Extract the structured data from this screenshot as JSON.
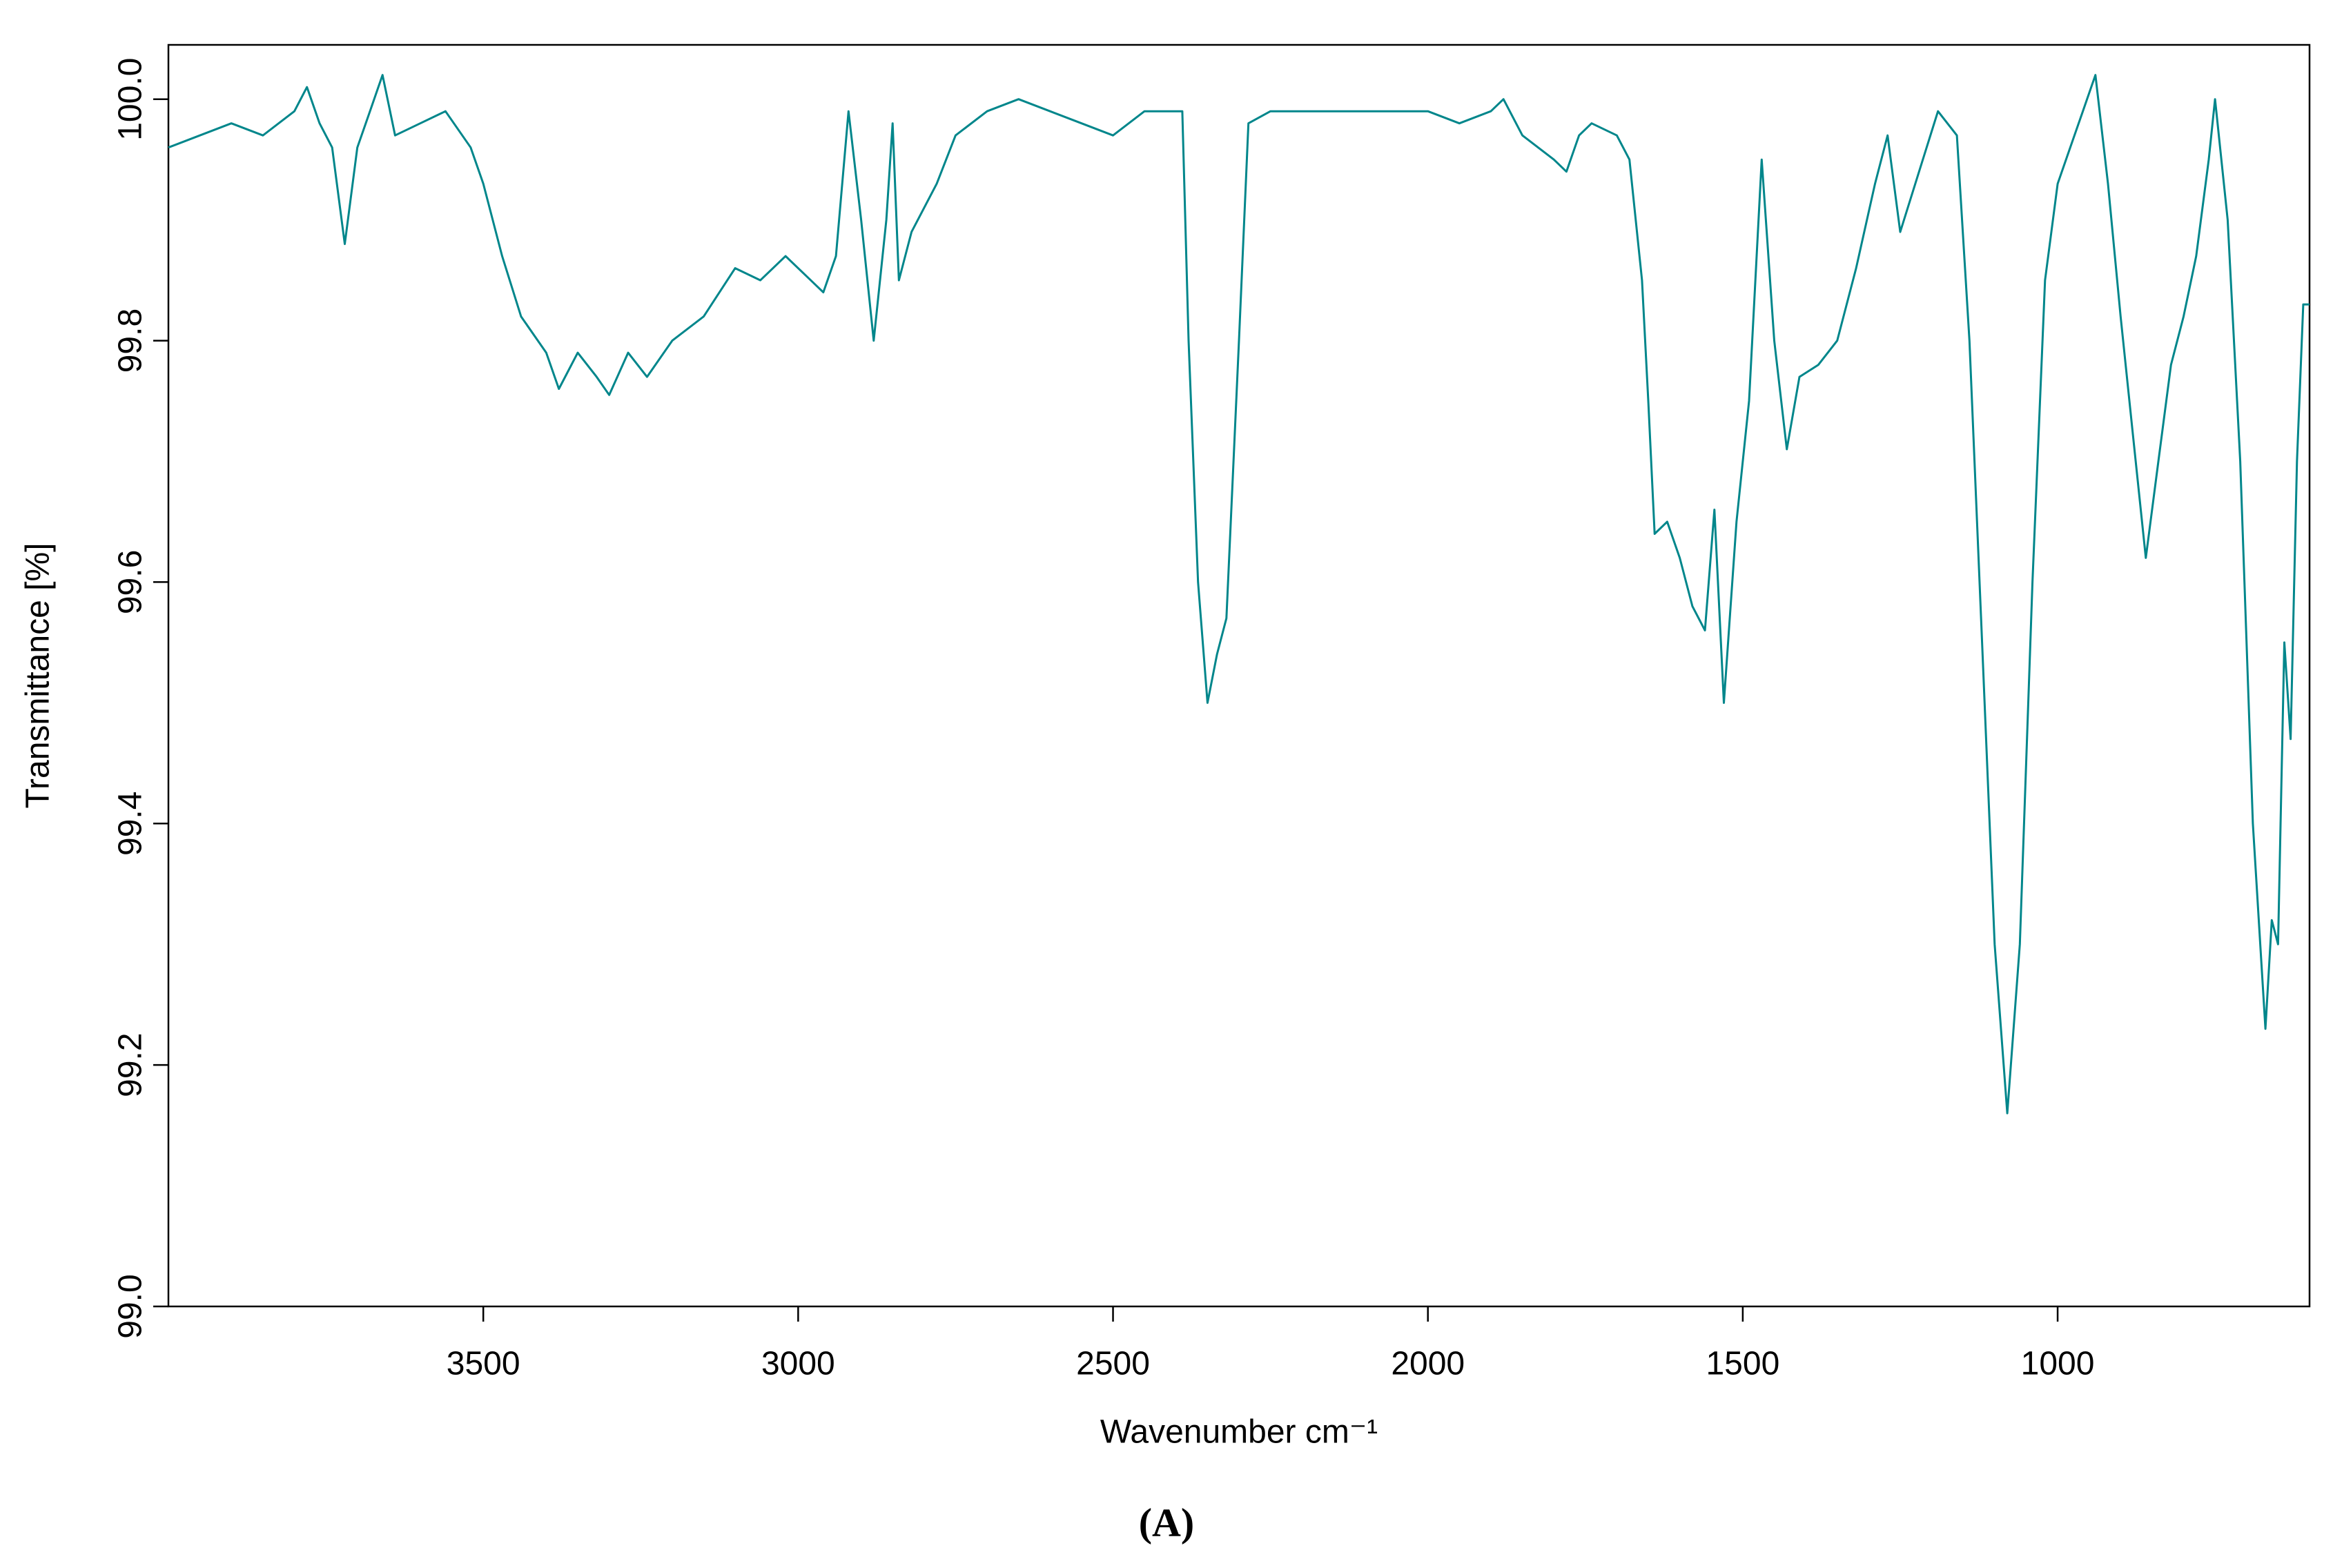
{
  "chart_data": {
    "type": "line",
    "x_label": "Wavenumber cm⁻¹",
    "y_label": "Transmittance [%]",
    "caption": "(A)",
    "color": "#00868b",
    "xlim": [
      4000,
      600
    ],
    "ylim": [
      99.0,
      100.045
    ],
    "xticks": [
      3500,
      3000,
      2500,
      2000,
      1500,
      1000
    ],
    "yticks": [
      {
        "value": 99.0,
        "label": "99.0"
      },
      99.2,
      99.4,
      99.6,
      99.8,
      {
        "value": 100.0,
        "label": "100.0"
      }
    ],
    "x": [
      4000,
      3950,
      3900,
      3850,
      3800,
      3780,
      3760,
      3740,
      3720,
      3700,
      3680,
      3660,
      3640,
      3600,
      3560,
      3520,
      3500,
      3470,
      3440,
      3400,
      3380,
      3350,
      3320,
      3300,
      3270,
      3240,
      3200,
      3150,
      3100,
      3060,
      3020,
      2980,
      2960,
      2940,
      2920,
      2900,
      2880,
      2860,
      2850,
      2840,
      2820,
      2780,
      2750,
      2700,
      2650,
      2600,
      2550,
      2500,
      2450,
      2400,
      2390,
      2380,
      2365,
      2350,
      2335,
      2320,
      2300,
      2285,
      2250,
      2200,
      2100,
      2000,
      1950,
      1900,
      1880,
      1850,
      1800,
      1780,
      1760,
      1740,
      1700,
      1680,
      1660,
      1650,
      1640,
      1620,
      1600,
      1580,
      1560,
      1545,
      1530,
      1510,
      1490,
      1470,
      1450,
      1430,
      1410,
      1380,
      1350,
      1320,
      1290,
      1270,
      1250,
      1220,
      1190,
      1160,
      1140,
      1120,
      1100,
      1080,
      1060,
      1040,
      1020,
      1000,
      980,
      960,
      940,
      920,
      900,
      880,
      860,
      840,
      820,
      800,
      780,
      760,
      750,
      730,
      710,
      690,
      670,
      660,
      650,
      640,
      630,
      620,
      610,
      600
    ],
    "values": [
      99.96,
      99.97,
      99.98,
      99.97,
      99.99,
      100.01,
      99.98,
      99.96,
      99.88,
      99.96,
      99.99,
      100.02,
      99.97,
      99.98,
      99.99,
      99.96,
      99.93,
      99.87,
      99.82,
      99.79,
      99.76,
      99.79,
      99.77,
      99.755,
      99.79,
      99.77,
      99.8,
      99.82,
      99.86,
      99.85,
      99.87,
      99.85,
      99.84,
      99.87,
      99.99,
      99.9,
      99.8,
      99.9,
      99.98,
      99.85,
      99.89,
      99.93,
      99.97,
      99.99,
      100.0,
      99.99,
      99.98,
      99.97,
      99.99,
      99.99,
      99.99,
      99.8,
      99.6,
      99.5,
      99.54,
      99.57,
      99.8,
      99.98,
      99.99,
      99.99,
      99.99,
      99.99,
      99.98,
      99.99,
      100.0,
      99.97,
      99.95,
      99.94,
      99.97,
      99.98,
      99.97,
      99.95,
      99.85,
      99.75,
      99.64,
      99.65,
      99.62,
      99.58,
      99.56,
      99.66,
      99.5,
      99.65,
      99.75,
      99.95,
      99.8,
      99.71,
      99.77,
      99.78,
      99.8,
      99.86,
      99.93,
      99.97,
      99.89,
      99.94,
      99.99,
      99.97,
      99.8,
      99.55,
      99.3,
      99.16,
      99.3,
      99.6,
      99.85,
      99.93,
      99.96,
      99.99,
      100.02,
      99.93,
      99.82,
      99.72,
      99.62,
      99.7,
      99.78,
      99.82,
      99.87,
      99.95,
      100.0,
      99.9,
      99.7,
      99.4,
      99.23,
      99.32,
      99.3,
      99.55,
      99.47,
      99.7,
      99.83,
      99.83
    ]
  }
}
